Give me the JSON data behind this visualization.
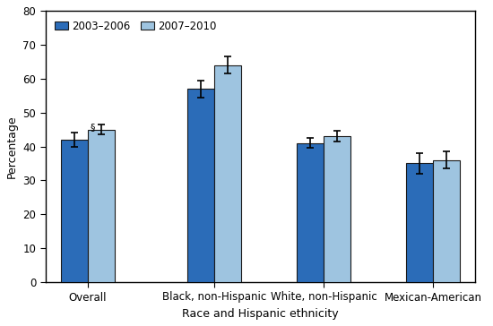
{
  "categories": [
    "Overall",
    "Black, non-Hispanic",
    "White, non-Hispanic",
    "Mexican-American"
  ],
  "series": {
    "2003-2006": [
      42,
      57,
      41,
      35
    ],
    "2007-2010": [
      45,
      64,
      43,
      36
    ]
  },
  "error_bars": {
    "2003-2006": [
      2.0,
      2.5,
      1.5,
      3.0
    ],
    "2007-2010": [
      1.5,
      2.5,
      1.5,
      2.5
    ]
  },
  "colors": {
    "2003-2006": "#2B6CB8",
    "2007-2010": "#9EC4E0"
  },
  "bar_edge_color": "#1a1a1a",
  "ylabel": "Percentage",
  "xlabel": "Race and Hispanic ethnicity",
  "ylim": [
    0,
    80
  ],
  "yticks": [
    0,
    10,
    20,
    30,
    40,
    50,
    60,
    70,
    80
  ],
  "legend_labels": [
    "2003–2006",
    "2007–2010"
  ],
  "annotation": "§",
  "annotation_bar": 0,
  "annotation_series": "2003-2006",
  "bar_width": 0.32,
  "background_color": "#ffffff",
  "axis_fontsize": 9,
  "tick_fontsize": 8.5,
  "legend_fontsize": 8.5
}
